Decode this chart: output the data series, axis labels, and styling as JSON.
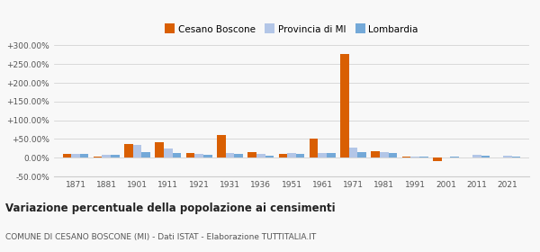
{
  "years": [
    1871,
    1881,
    1901,
    1911,
    1921,
    1931,
    1936,
    1951,
    1961,
    1971,
    1981,
    1991,
    2001,
    2011,
    2021
  ],
  "cesano": [
    10.0,
    2.0,
    37.0,
    42.0,
    13.0,
    60.0,
    14.0,
    9.0,
    51.0,
    278.0,
    17.0,
    4.0,
    -10.0,
    0.5,
    0.5
  ],
  "provincia": [
    11.0,
    8.0,
    33.0,
    25.0,
    9.0,
    12.0,
    10.0,
    12.0,
    12.0,
    28.0,
    14.0,
    2.0,
    1.0,
    7.0,
    5.0
  ],
  "lombardia": [
    10.0,
    8.0,
    14.0,
    13.0,
    8.0,
    10.0,
    6.0,
    11.0,
    13.0,
    16.0,
    13.0,
    3.0,
    2.0,
    5.0,
    4.0
  ],
  "color_cesano": "#d95f02",
  "color_provincia": "#b3c6e7",
  "color_lombardia": "#74a9d8",
  "ylim": [
    -50,
    300
  ],
  "yticks": [
    -50,
    0,
    50,
    100,
    150,
    200,
    250,
    300
  ],
  "ytick_labels": [
    "-50.00%",
    "0.00%",
    "+50.00%",
    "+100.00%",
    "+150.00%",
    "+200.00%",
    "+250.00%",
    "+300.00%"
  ],
  "title": "Variazione percentuale della popolazione ai censimenti",
  "subtitle": "COMUNE DI CESANO BOSCONE (MI) - Dati ISTAT - Elaborazione TUTTITALIA.IT",
  "legend_labels": [
    "Cesano Boscone",
    "Provincia di MI",
    "Lombardia"
  ],
  "bar_width": 0.28,
  "bg_color": "#f8f8f8",
  "grid_color": "#cccccc"
}
